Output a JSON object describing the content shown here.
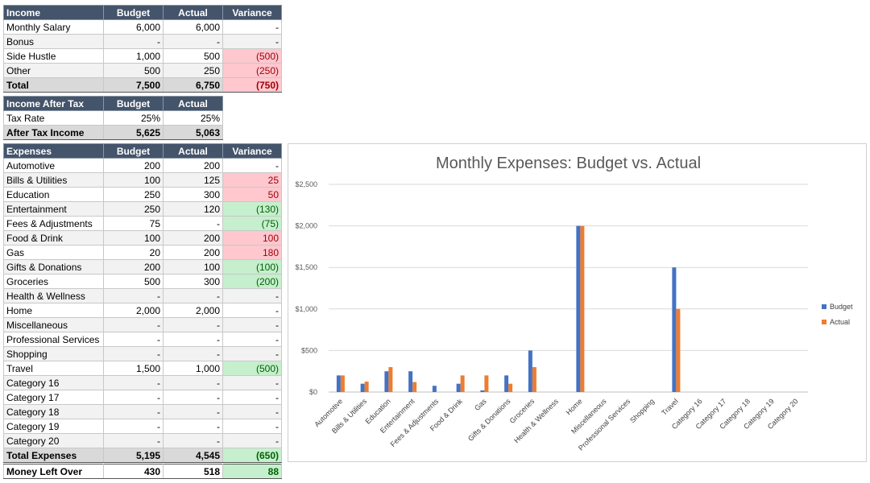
{
  "income": {
    "headers": [
      "Income",
      "Budget",
      "Actual",
      "Variance"
    ],
    "rows": [
      {
        "label": "Monthly Salary",
        "budget": "6,000",
        "actual": "6,000",
        "variance": "-",
        "status": ""
      },
      {
        "label": "Bonus",
        "budget": "-",
        "actual": "-",
        "variance": "-",
        "status": ""
      },
      {
        "label": "Side Hustle",
        "budget": "1,000",
        "actual": "500",
        "variance": "(500)",
        "status": "red"
      },
      {
        "label": "Other",
        "budget": "500",
        "actual": "250",
        "variance": "(250)",
        "status": "red"
      }
    ],
    "total": {
      "label": "Total",
      "budget": "7,500",
      "actual": "6,750",
      "variance": "(750)",
      "status": "red"
    }
  },
  "after_tax": {
    "headers": [
      "Income After Tax",
      "Budget",
      "Actual"
    ],
    "tax_rate": {
      "label": "Tax Rate",
      "budget": "25%",
      "actual": "25%"
    },
    "total": {
      "label": "After Tax Income",
      "budget": "5,625",
      "actual": "5,063"
    }
  },
  "expenses": {
    "headers": [
      "Expenses",
      "Budget",
      "Actual",
      "Variance"
    ],
    "rows": [
      {
        "label": "Automotive",
        "budget": "200",
        "actual": "200",
        "variance": "-",
        "status": ""
      },
      {
        "label": "Bills & Utilities",
        "budget": "100",
        "actual": "125",
        "variance": "25",
        "status": "red"
      },
      {
        "label": "Education",
        "budget": "250",
        "actual": "300",
        "variance": "50",
        "status": "red"
      },
      {
        "label": "Entertainment",
        "budget": "250",
        "actual": "120",
        "variance": "(130)",
        "status": "green"
      },
      {
        "label": "Fees & Adjustments",
        "budget": "75",
        "actual": "-",
        "variance": "(75)",
        "status": "green"
      },
      {
        "label": "Food & Drink",
        "budget": "100",
        "actual": "200",
        "variance": "100",
        "status": "red"
      },
      {
        "label": "Gas",
        "budget": "20",
        "actual": "200",
        "variance": "180",
        "status": "red"
      },
      {
        "label": "Gifts & Donations",
        "budget": "200",
        "actual": "100",
        "variance": "(100)",
        "status": "green"
      },
      {
        "label": "Groceries",
        "budget": "500",
        "actual": "300",
        "variance": "(200)",
        "status": "green"
      },
      {
        "label": "Health & Wellness",
        "budget": "-",
        "actual": "-",
        "variance": "-",
        "status": ""
      },
      {
        "label": "Home",
        "budget": "2,000",
        "actual": "2,000",
        "variance": "-",
        "status": ""
      },
      {
        "label": "Miscellaneous",
        "budget": "-",
        "actual": "-",
        "variance": "-",
        "status": ""
      },
      {
        "label": "Professional Services",
        "budget": "-",
        "actual": "-",
        "variance": "-",
        "status": ""
      },
      {
        "label": "Shopping",
        "budget": "-",
        "actual": "-",
        "variance": "-",
        "status": ""
      },
      {
        "label": "Travel",
        "budget": "1,500",
        "actual": "1,000",
        "variance": "(500)",
        "status": "green"
      },
      {
        "label": "Category 16",
        "budget": "-",
        "actual": "-",
        "variance": "-",
        "status": ""
      },
      {
        "label": "Category 17",
        "budget": "-",
        "actual": "-",
        "variance": "-",
        "status": ""
      },
      {
        "label": "Category 18",
        "budget": "-",
        "actual": "-",
        "variance": "-",
        "status": ""
      },
      {
        "label": "Category 19",
        "budget": "-",
        "actual": "-",
        "variance": "-",
        "status": ""
      },
      {
        "label": "Category 20",
        "budget": "-",
        "actual": "-",
        "variance": "-",
        "status": ""
      }
    ],
    "total": {
      "label": "Total Expenses",
      "budget": "5,195",
      "actual": "4,545",
      "variance": "(650)",
      "status": "green"
    }
  },
  "money_left": {
    "label": "Money Left Over",
    "budget": "430",
    "actual": "518",
    "variance": "88",
    "status": "green"
  },
  "chart_data": {
    "type": "bar",
    "title": "Monthly Expenses: Budget vs. Actual",
    "categories": [
      "Automotive",
      "Bills & Utilities",
      "Education",
      "Entertainment",
      "Fees & Adjustments",
      "Food & Drink",
      "Gas",
      "Gifts & Donations",
      "Groceries",
      "Health & Wellness",
      "Home",
      "Miscellaneous",
      "Professional Services",
      "Shopping",
      "Travel",
      "Category 16",
      "Category 17",
      "Category 18",
      "Category 19",
      "Category 20"
    ],
    "series": [
      {
        "name": "Budget",
        "color": "#4472c4",
        "values": [
          200,
          100,
          250,
          250,
          75,
          100,
          20,
          200,
          500,
          0,
          2000,
          0,
          0,
          0,
          1500,
          0,
          0,
          0,
          0,
          0
        ]
      },
      {
        "name": "Actual",
        "color": "#ed7d31",
        "values": [
          200,
          125,
          300,
          120,
          0,
          200,
          200,
          100,
          300,
          0,
          2000,
          0,
          0,
          0,
          1000,
          0,
          0,
          0,
          0,
          0
        ]
      }
    ],
    "ylim": [
      0,
      2500
    ],
    "yticks": [
      0,
      500,
      1000,
      1500,
      2000,
      2500
    ],
    "ytick_labels": [
      "$0",
      "$500",
      "$1,000",
      "$1,500",
      "$2,000",
      "$2,500"
    ],
    "grid": true,
    "legend": "right"
  }
}
